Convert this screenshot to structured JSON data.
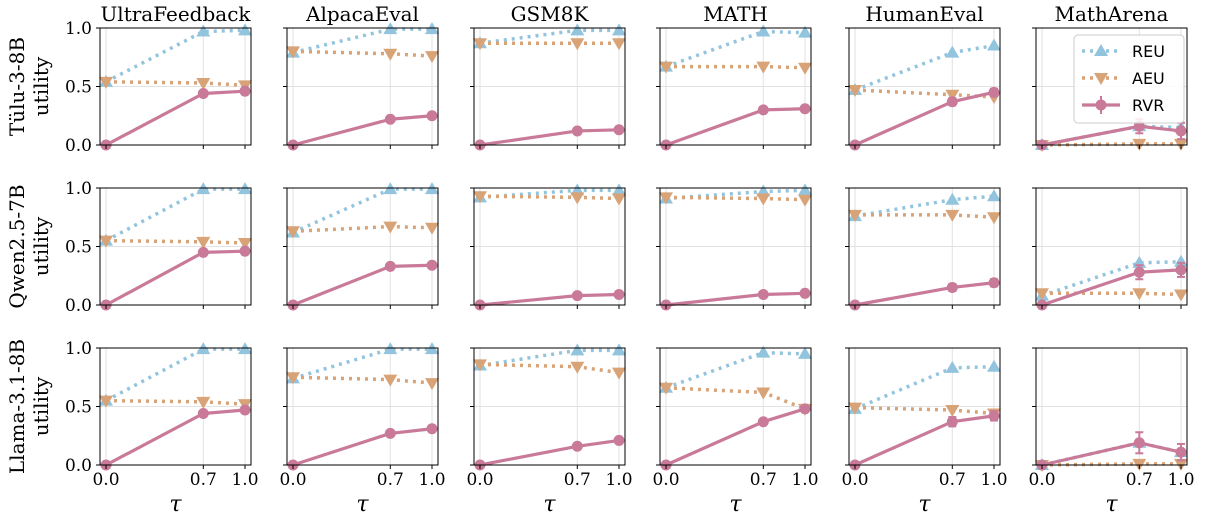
{
  "chart_data": {
    "type": "line",
    "xlabel": "τ",
    "x": [
      0.0,
      0.7,
      1.0
    ],
    "xticks": [
      "0.0",
      "0.7",
      "1.0"
    ],
    "ylim": [
      0,
      1
    ],
    "yticks": [
      "0.0",
      "0.5",
      "1.0"
    ],
    "grid": true,
    "legend_location": "top-right of the MathArena panel in the first row",
    "columns": [
      "UltraFeedback",
      "AlpacaEval",
      "GSM8K",
      "MATH",
      "HumanEval",
      "MathArena"
    ],
    "rows": [
      {
        "model": "Tülu-3-8B",
        "ylabel": "utility"
      },
      {
        "model": "Qwen2.5-7B",
        "ylabel": "utility"
      },
      {
        "model": "Llama-3.1-8B",
        "ylabel": "utility"
      }
    ],
    "series_styles": [
      {
        "name": "REU",
        "color": "#93c4de",
        "line": "dotted",
        "marker": "triangle-up"
      },
      {
        "name": "AEU",
        "color": "#d9a378",
        "line": "dotted",
        "marker": "triangle-down"
      },
      {
        "name": "RVR",
        "color": "#c97a99",
        "line": "solid",
        "marker": "circle",
        "error_bars": true
      }
    ],
    "panels": [
      [
        {
          "REU": [
            0.54,
            0.97,
            0.98
          ],
          "AEU": [
            0.54,
            0.53,
            0.51
          ],
          "RVR": [
            0.0,
            0.44,
            0.46
          ],
          "RVR_err": [
            0,
            0,
            0
          ]
        },
        {
          "REU": [
            0.79,
            0.99,
            0.99
          ],
          "AEU": [
            0.8,
            0.78,
            0.76
          ],
          "RVR": [
            0.0,
            0.22,
            0.25
          ],
          "RVR_err": [
            0,
            0,
            0
          ]
        },
        {
          "REU": [
            0.87,
            0.98,
            0.98
          ],
          "AEU": [
            0.87,
            0.87,
            0.87
          ],
          "RVR": [
            0.0,
            0.12,
            0.13
          ],
          "RVR_err": [
            0,
            0,
            0
          ]
        },
        {
          "REU": [
            0.67,
            0.97,
            0.96
          ],
          "AEU": [
            0.67,
            0.67,
            0.66
          ],
          "RVR": [
            0.0,
            0.3,
            0.31
          ],
          "RVR_err": [
            0,
            0,
            0
          ]
        },
        {
          "REU": [
            0.47,
            0.79,
            0.85
          ],
          "AEU": [
            0.47,
            0.43,
            0.41
          ],
          "RVR": [
            0.0,
            0.37,
            0.45
          ],
          "RVR_err": [
            0,
            0.03,
            0.03
          ]
        },
        {
          "REU": [
            0.0,
            0.16,
            0.15
          ],
          "AEU": [
            0.0,
            0.01,
            0.01
          ],
          "RVR": [
            0.0,
            0.16,
            0.12
          ],
          "RVR_err": [
            0,
            0.06,
            0.07
          ]
        }
      ],
      [
        {
          "REU": [
            0.55,
            0.99,
            0.99
          ],
          "AEU": [
            0.55,
            0.54,
            0.53
          ],
          "RVR": [
            0.0,
            0.45,
            0.46
          ],
          "RVR_err": [
            0,
            0,
            0
          ]
        },
        {
          "REU": [
            0.62,
            0.99,
            0.99
          ],
          "AEU": [
            0.63,
            0.67,
            0.66
          ],
          "RVR": [
            0.0,
            0.33,
            0.34
          ],
          "RVR_err": [
            0,
            0,
            0
          ]
        },
        {
          "REU": [
            0.92,
            0.98,
            0.98
          ],
          "AEU": [
            0.93,
            0.92,
            0.91
          ],
          "RVR": [
            0.0,
            0.08,
            0.09
          ],
          "RVR_err": [
            0,
            0,
            0
          ]
        },
        {
          "REU": [
            0.91,
            0.97,
            0.98
          ],
          "AEU": [
            0.92,
            0.91,
            0.9
          ],
          "RVR": [
            0.0,
            0.09,
            0.1
          ],
          "RVR_err": [
            0,
            0,
            0
          ]
        },
        {
          "REU": [
            0.76,
            0.9,
            0.93
          ],
          "AEU": [
            0.77,
            0.77,
            0.75
          ],
          "RVR": [
            0.0,
            0.15,
            0.19
          ],
          "RVR_err": [
            0,
            0.03,
            0.03
          ]
        },
        {
          "REU": [
            0.08,
            0.36,
            0.37
          ],
          "AEU": [
            0.1,
            0.1,
            0.09
          ],
          "RVR": [
            0.0,
            0.28,
            0.3
          ],
          "RVR_err": [
            0,
            0.06,
            0.06
          ]
        }
      ],
      [
        {
          "REU": [
            0.55,
            0.99,
            0.99
          ],
          "AEU": [
            0.55,
            0.54,
            0.52
          ],
          "RVR": [
            0.0,
            0.44,
            0.47
          ],
          "RVR_err": [
            0,
            0,
            0
          ]
        },
        {
          "REU": [
            0.74,
            0.99,
            0.99
          ],
          "AEU": [
            0.75,
            0.73,
            0.7
          ],
          "RVR": [
            0.0,
            0.27,
            0.31
          ],
          "RVR_err": [
            0,
            0,
            0
          ]
        },
        {
          "REU": [
            0.85,
            0.98,
            0.98
          ],
          "AEU": [
            0.86,
            0.84,
            0.79
          ],
          "RVR": [
            0.0,
            0.16,
            0.21
          ],
          "RVR_err": [
            0,
            0,
            0
          ]
        },
        {
          "REU": [
            0.66,
            0.96,
            0.95
          ],
          "AEU": [
            0.66,
            0.62,
            0.48
          ],
          "RVR": [
            0.0,
            0.37,
            0.48
          ],
          "RVR_err": [
            0,
            0,
            0
          ]
        },
        {
          "REU": [
            0.48,
            0.83,
            0.84
          ],
          "AEU": [
            0.49,
            0.47,
            0.44
          ],
          "RVR": [
            0.0,
            0.37,
            0.42
          ],
          "RVR_err": [
            0,
            0.04,
            0.04
          ]
        },
        {
          "REU": [
            0.0,
            0.19,
            0.11
          ],
          "AEU": [
            0.0,
            0.01,
            0.01
          ],
          "RVR": [
            0.0,
            0.19,
            0.11
          ],
          "RVR_err": [
            0,
            0.09,
            0.07
          ]
        }
      ]
    ]
  }
}
